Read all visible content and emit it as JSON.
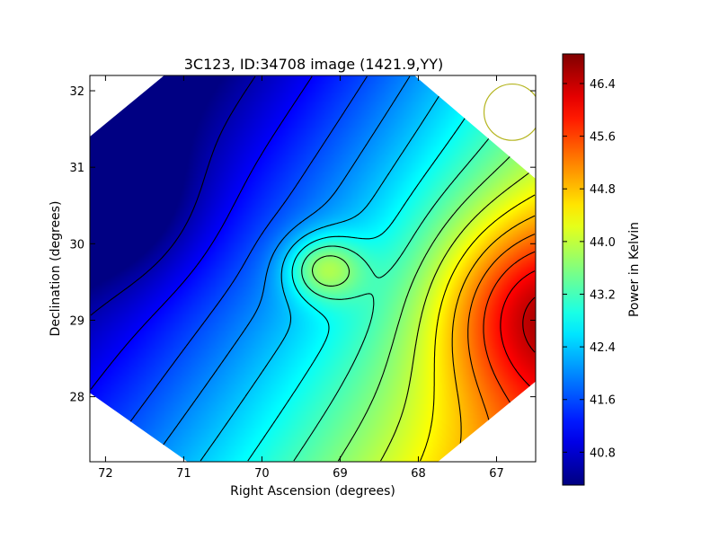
{
  "chart_data": {
    "type": "heatmap",
    "title": "3C123, ID:34708 image (1421.9,YY)",
    "xlabel": "Right Ascension (degrees)",
    "ylabel": "Declination (degrees)",
    "xlim": [
      72.2,
      66.5
    ],
    "ylim": [
      27.15,
      32.2
    ],
    "x_ticks": [
      72,
      71,
      70,
      69,
      68,
      67
    ],
    "y_ticks": [
      28,
      29,
      30,
      31,
      32
    ],
    "x_tick_labels": [
      "72",
      "71",
      "70",
      "69",
      "68",
      "67"
    ],
    "y_tick_labels": [
      "28",
      "29",
      "30",
      "31",
      "32"
    ],
    "colorbar": {
      "label": "Power in Kelvin",
      "range": [
        40.3,
        46.85
      ],
      "ticks": [
        40.8,
        41.6,
        42.4,
        43.2,
        44.0,
        44.8,
        45.6,
        46.4
      ],
      "tick_labels": [
        "40.8",
        "41.6",
        "42.4",
        "43.2",
        "44.0",
        "44.8",
        "45.6",
        "46.4"
      ],
      "colormap": "jet"
    },
    "field_model": {
      "description": "Smooth brightness field, increasing from northwest (~40.4 K) to east (~46.8 K)",
      "min_peak": {
        "ra": 71.9,
        "dec": 30.5,
        "value": 40.35
      },
      "max_peak": {
        "ra": 66.55,
        "dec": 29.15,
        "value": 46.8
      },
      "local_source": {
        "ra": 69.2,
        "dec": 29.68,
        "value": 44.6
      }
    },
    "contour_levels": [
      40.6,
      41.1,
      41.6,
      42.0,
      42.4,
      42.8,
      43.2,
      43.6,
      44.0,
      44.4,
      44.8,
      45.2,
      45.6,
      46.0,
      46.4
    ],
    "beam": {
      "ra": 66.8,
      "dec": 31.72,
      "radius_deg": 0.36,
      "color": "#b5b520"
    }
  }
}
